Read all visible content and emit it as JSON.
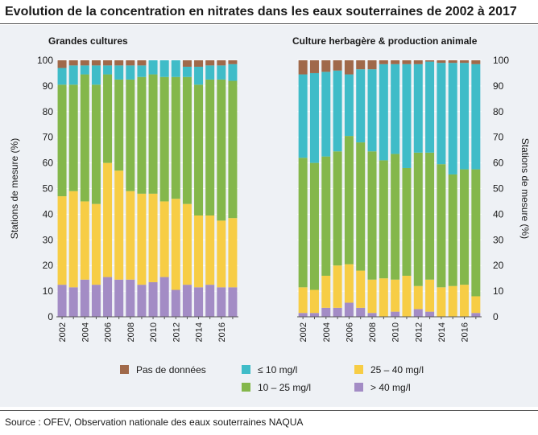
{
  "title": "Evolution de la concentration en nitrates dans les eaux souterraines de 2002 à 2017",
  "source": "Source : OFEV, Observation nationale des eaux souterraines NAQUA",
  "colors": {
    "pas_de_donnees": "#a0694a",
    "le10": "#3fbcc8",
    "c10_25": "#84b74b",
    "c25_40": "#f7cd45",
    "gt40": "#a38cc5"
  },
  "chart_data": [
    {
      "type": "bar",
      "stacked": true,
      "title": "Grandes cultures",
      "ylabel": "Stations de mesure  (%)",
      "ylabel_side": "left",
      "ylim": [
        0,
        100
      ],
      "yticks": [
        0,
        10,
        20,
        30,
        40,
        50,
        60,
        70,
        80,
        90,
        100
      ],
      "categories": [
        "2002",
        "2003",
        "2004",
        "2005",
        "2006",
        "2007",
        "2008",
        "2009",
        "2010",
        "2011",
        "2012",
        "2013",
        "2014",
        "2015",
        "2016",
        "2017"
      ],
      "tick_labels": [
        "2002",
        "",
        "2004",
        "",
        "2006",
        "",
        "2008",
        "",
        "2010",
        "",
        "2012",
        "",
        "2014",
        "",
        "2016",
        ""
      ],
      "series": [
        {
          "name": "> 40 mg/l",
          "key": "gt40",
          "values": [
            12.5,
            11.5,
            14.5,
            12.5,
            15.5,
            14.5,
            14.5,
            12.5,
            13.5,
            15.5,
            10.5,
            12.5,
            11.5,
            12.5,
            11.5,
            11.5
          ]
        },
        {
          "name": "25 – 40 mg/l",
          "key": "c25_40",
          "values": [
            34.5,
            37.5,
            30.5,
            31.5,
            44.5,
            42.5,
            34.5,
            35.5,
            34.5,
            29.5,
            35.5,
            31.5,
            28.0,
            27.0,
            26.0,
            27.0
          ]
        },
        {
          "name": "10 – 25 mg/l",
          "key": "c10_25",
          "values": [
            43.5,
            41.5,
            49.5,
            46.5,
            34.5,
            35.5,
            43.5,
            45.5,
            46.5,
            48.5,
            47.5,
            49.5,
            51.0,
            53.0,
            55.0,
            53.5
          ]
        },
        {
          "name": "≤ 10 mg/l",
          "key": "le10",
          "values": [
            6.5,
            7.5,
            3.5,
            7.5,
            3.5,
            5.5,
            5.5,
            4.5,
            5.5,
            6.5,
            6.5,
            4.0,
            7.0,
            5.5,
            5.5,
            6.5
          ]
        },
        {
          "name": "Pas de données",
          "key": "pas_de_donnees",
          "values": [
            3.0,
            2.0,
            2.0,
            2.0,
            2.0,
            2.0,
            2.0,
            2.0,
            0.0,
            0.0,
            0.0,
            2.5,
            2.5,
            2.0,
            2.0,
            1.5
          ]
        }
      ]
    },
    {
      "type": "bar",
      "stacked": true,
      "title": "Culture herbagère & production animale",
      "ylabel": "Stations de mesure  (%)",
      "ylabel_side": "right",
      "ylim": [
        0,
        100
      ],
      "yticks": [
        0,
        10,
        20,
        30,
        40,
        50,
        60,
        70,
        80,
        90,
        100
      ],
      "categories": [
        "2002",
        "2003",
        "2004",
        "2005",
        "2006",
        "2007",
        "2008",
        "2009",
        "2010",
        "2011",
        "2012",
        "2013",
        "2014",
        "2015",
        "2016",
        "2017"
      ],
      "tick_labels": [
        "2002",
        "",
        "2004",
        "",
        "2006",
        "",
        "2008",
        "",
        "2010",
        "",
        "2012",
        "",
        "2014",
        "",
        "2016",
        ""
      ],
      "series": [
        {
          "name": "> 40 mg/l",
          "key": "gt40",
          "values": [
            1.5,
            1.5,
            3.5,
            3.5,
            5.5,
            3.5,
            1.5,
            0.0,
            2.0,
            0.0,
            3.0,
            2.0,
            0.0,
            0.0,
            0.0,
            1.5
          ]
        },
        {
          "name": "25 – 40 mg/l",
          "key": "c25_40",
          "values": [
            10.0,
            9.0,
            12.5,
            16.5,
            15.0,
            14.5,
            13.0,
            15.0,
            12.5,
            16.0,
            9.0,
            12.5,
            11.5,
            12.0,
            12.5,
            6.5
          ]
        },
        {
          "name": "10 – 25 mg/l",
          "key": "c10_25",
          "values": [
            50.5,
            49.5,
            46.5,
            44.5,
            50.0,
            50.0,
            50.0,
            46.0,
            49.0,
            42.0,
            52.0,
            49.5,
            48.0,
            43.5,
            45.0,
            49.5
          ]
        },
        {
          "name": "≤ 10 mg/l",
          "key": "le10",
          "values": [
            32.5,
            35.0,
            33.0,
            31.5,
            24.0,
            28.5,
            32.0,
            37.5,
            35.0,
            40.5,
            34.5,
            35.5,
            39.5,
            43.5,
            41.5,
            41.0
          ]
        },
        {
          "name": "Pas de données",
          "key": "pas_de_donnees",
          "values": [
            5.5,
            5.0,
            4.5,
            4.0,
            5.5,
            3.5,
            3.5,
            1.5,
            1.5,
            1.5,
            1.5,
            0.5,
            1.0,
            1.0,
            1.0,
            1.5
          ]
        }
      ]
    }
  ],
  "legend": [
    {
      "label": "Pas de données",
      "key": "pas_de_donnees"
    },
    {
      "label": "≤ 10 mg/l",
      "key": "le10"
    },
    {
      "label": "25 – 40 mg/l",
      "key": "c25_40"
    },
    {
      "label": "10 – 25 mg/l",
      "key": "c10_25"
    },
    {
      "label": "> 40 mg/l",
      "key": "gt40"
    }
  ]
}
